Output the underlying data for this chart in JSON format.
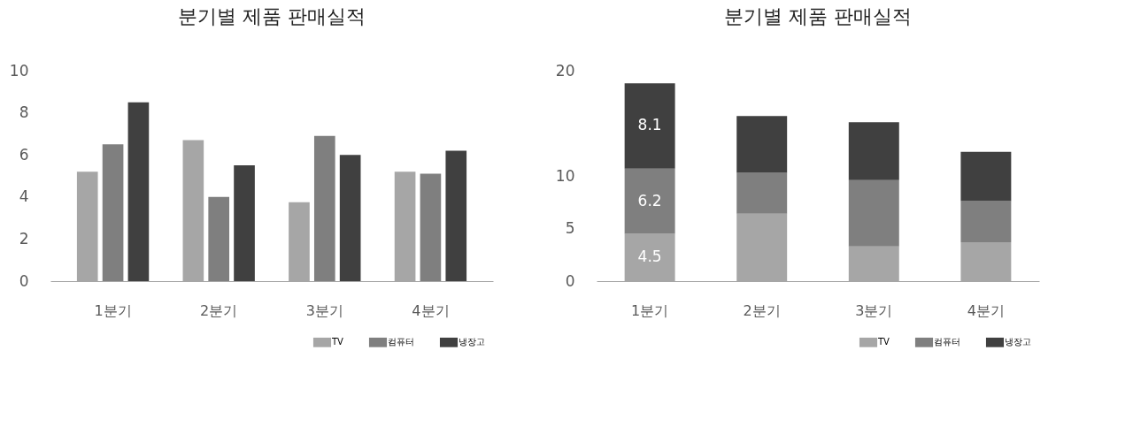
{
  "chart_data": [
    {
      "type": "bar",
      "title": "분기별 제품 판매실적",
      "categories": [
        "1분기",
        "2분기",
        "3분기",
        "4분기"
      ],
      "ylim": [
        0,
        10
      ],
      "yticks": [
        0,
        2,
        4,
        6,
        8,
        10
      ],
      "grid": false,
      "legend": "bottom right",
      "series": [
        {
          "name": "TV",
          "color": "#a6a6a6",
          "values": [
            5.2,
            6.7,
            3.75,
            5.2
          ]
        },
        {
          "name": "컴퓨터",
          "color": "#7f7f7f",
          "values": [
            6.5,
            4.0,
            6.9,
            5.1
          ]
        },
        {
          "name": "냉장고",
          "color": "#404040",
          "values": [
            8.5,
            5.5,
            6.0,
            6.2
          ]
        }
      ]
    },
    {
      "type": "bar",
      "title": "분기별 제품 판매실적",
      "stacked": true,
      "categories": [
        "1분기",
        "2분기",
        "3분기",
        "4분기"
      ],
      "ylim": [
        0,
        20
      ],
      "yticks": [
        0,
        5,
        10,
        20
      ],
      "grid": false,
      "legend": "bottom right",
      "series": [
        {
          "name": "TV",
          "color": "#a6a6a6",
          "values": [
            4.5,
            6.4,
            3.3,
            3.7
          ],
          "value_labels": [
            "4.5",
            null,
            null,
            null
          ]
        },
        {
          "name": "컴퓨터",
          "color": "#7f7f7f",
          "values": [
            6.2,
            3.9,
            6.3,
            3.9
          ],
          "value_labels": [
            "6.2",
            null,
            null,
            null
          ]
        },
        {
          "name": "냉장고",
          "color": "#404040",
          "values": [
            8.1,
            5.4,
            5.5,
            4.7
          ],
          "value_labels": [
            "8.1",
            null,
            null,
            null
          ]
        }
      ]
    }
  ]
}
